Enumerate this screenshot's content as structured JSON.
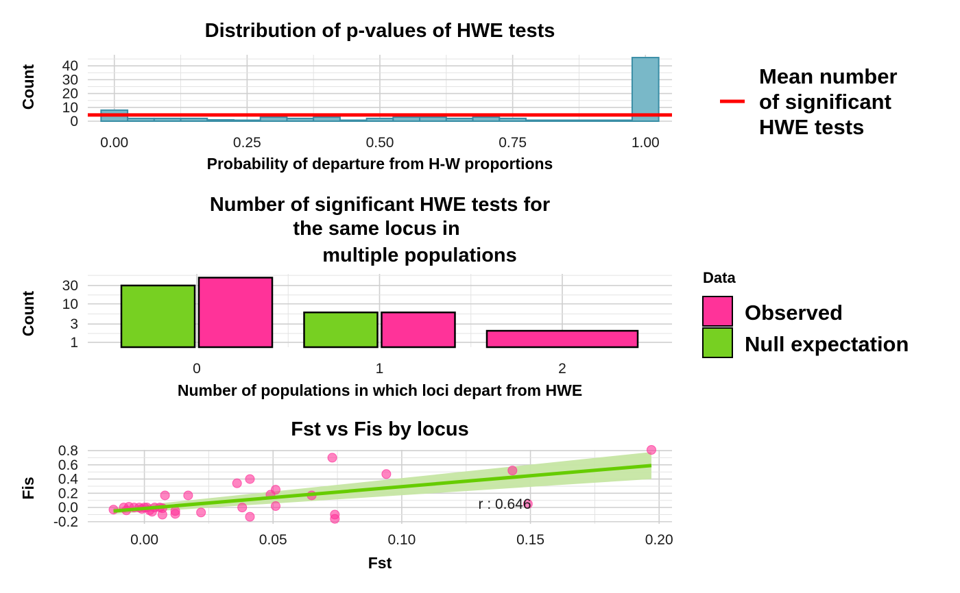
{
  "colors": {
    "hist_fill": "#79b8c8",
    "hist_stroke": "#3a8ea6",
    "mean_line": "#ff0000",
    "observed": "#ff3399",
    "null": "#77d022",
    "fit_line": "#66cc00",
    "ribbon": "#c6e6a3"
  },
  "legend1": {
    "label_lines": [
      "Mean number",
      "of significant",
      "HWE tests"
    ]
  },
  "legend2": {
    "title": "Data",
    "items": [
      {
        "label": "Observed",
        "color_key": "observed"
      },
      {
        "label": "Null expectation",
        "color_key": "null"
      }
    ]
  },
  "chart_data": [
    {
      "type": "bar",
      "title": "Distribution of p-values of HWE tests",
      "xlabel": "Probability of departure from H-W proportions",
      "ylabel": "Count",
      "xlim": [
        -0.05,
        1.05
      ],
      "ylim": [
        0,
        48
      ],
      "x_ticks": [
        "0.00",
        "0.25",
        "0.50",
        "0.75",
        "1.00"
      ],
      "y_ticks": [
        "0",
        "10",
        "20",
        "30",
        "40"
      ],
      "bin_width": 0.05,
      "bin_centers": [
        0.0,
        0.05,
        0.1,
        0.15,
        0.2,
        0.25,
        0.3,
        0.35,
        0.4,
        0.45,
        0.5,
        0.55,
        0.6,
        0.65,
        0.7,
        0.75,
        0.8,
        0.85,
        0.9,
        0.95,
        1.0
      ],
      "values": [
        8,
        2,
        2,
        2,
        1,
        0,
        3,
        2,
        3,
        0,
        2,
        3,
        3,
        2,
        3,
        2,
        0,
        0,
        0,
        0,
        46
      ],
      "mean_line_value": 4.5,
      "mean_line_label": "Mean number of significant HWE tests"
    },
    {
      "type": "bar",
      "title_lines": [
        "Number of significant HWE tests for",
        "the same locus in",
        "multiple populations"
      ],
      "xlabel": "Number of populations in which loci depart from HWE",
      "ylabel": "Count",
      "scale": "log",
      "categories": [
        "0",
        "1",
        "2"
      ],
      "y_ticks": [
        "1",
        "3",
        "10",
        "30"
      ],
      "series": [
        {
          "name": "Null expectation",
          "values": [
            30,
            6,
            null
          ]
        },
        {
          "name": "Observed",
          "values": [
            48,
            6,
            2
          ]
        }
      ]
    },
    {
      "type": "scatter",
      "title": "Fst vs Fis by locus",
      "xlabel": "Fst",
      "ylabel": "Fis",
      "xlim": [
        -0.022,
        0.205
      ],
      "ylim": [
        -0.23,
        0.81
      ],
      "x_ticks": [
        "0.00",
        "0.05",
        "0.10",
        "0.15",
        "0.20"
      ],
      "y_ticks": [
        "-0.2",
        "0.0",
        "0.2",
        "0.4",
        "0.6",
        "0.8"
      ],
      "points": [
        [
          -0.012,
          -0.03
        ],
        [
          -0.008,
          0.0
        ],
        [
          -0.007,
          -0.04
        ],
        [
          -0.006,
          0.01
        ],
        [
          -0.004,
          0.0
        ],
        [
          -0.002,
          0.0
        ],
        [
          -0.001,
          -0.02
        ],
        [
          0.0,
          0.0
        ],
        [
          0.001,
          0.0
        ],
        [
          0.002,
          -0.04
        ],
        [
          0.003,
          -0.06
        ],
        [
          0.004,
          0.0
        ],
        [
          0.006,
          0.0
        ],
        [
          0.007,
          -0.01
        ],
        [
          0.007,
          -0.1
        ],
        [
          0.008,
          0.17
        ],
        [
          0.012,
          -0.05
        ],
        [
          0.012,
          -0.09
        ],
        [
          0.017,
          0.17
        ],
        [
          0.022,
          -0.07
        ],
        [
          0.036,
          0.34
        ],
        [
          0.038,
          0.0
        ],
        [
          0.041,
          0.4
        ],
        [
          0.041,
          -0.13
        ],
        [
          0.049,
          0.18
        ],
        [
          0.051,
          0.25
        ],
        [
          0.051,
          0.02
        ],
        [
          0.065,
          0.17
        ],
        [
          0.073,
          0.7
        ],
        [
          0.074,
          -0.1
        ],
        [
          0.074,
          -0.16
        ],
        [
          0.094,
          0.47
        ],
        [
          0.143,
          0.52
        ],
        [
          0.149,
          0.05
        ],
        [
          0.197,
          0.81
        ]
      ],
      "fit": {
        "x": [
          -0.012,
          0.197
        ],
        "y": [
          -0.05,
          0.59
        ],
        "ci_low": [
          -0.09,
          0.4
        ],
        "ci_high": [
          -0.01,
          0.78
        ]
      },
      "annotation": "r : 0.646",
      "annotation_pos": [
        0.14,
        0.06
      ]
    }
  ]
}
